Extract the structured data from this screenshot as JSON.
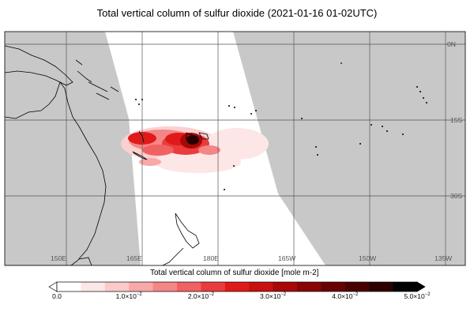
{
  "title": "Total vertical column of sulfur dioxide (2021-01-16 01-02UTC)",
  "map": {
    "longitude_labels": [
      "150E",
      "165E",
      "180E",
      "165W",
      "150W",
      "135W"
    ],
    "latitude_labels": [
      "0N",
      "15S",
      "30S"
    ],
    "colors": {
      "no_data": "#c8c8c8",
      "swath": "#ffffff",
      "coastline": "#000000",
      "grid": "#555555"
    }
  },
  "colorbar": {
    "title": "Total vertical column of sulfur dioxide [mole m-2]",
    "tick_labels": [
      {
        "base": "0.0",
        "exp": ""
      },
      {
        "base": "1.0×10",
        "exp": "−2"
      },
      {
        "base": "2.0×10",
        "exp": "−2"
      },
      {
        "base": "3.0×10",
        "exp": "−2"
      },
      {
        "base": "4.0×10",
        "exp": "−2"
      },
      {
        "base": "5.0×10",
        "exp": "−2"
      }
    ],
    "min": 0.0,
    "max": 0.05,
    "colors": [
      "#ffffff",
      "#fde6e6",
      "#fbcaca",
      "#f8a8a8",
      "#f48686",
      "#f06262",
      "#ea3c3c",
      "#e01a1a",
      "#c81010",
      "#a80808",
      "#880404",
      "#680202",
      "#4a0101",
      "#2c0000",
      "#000000"
    ]
  }
}
